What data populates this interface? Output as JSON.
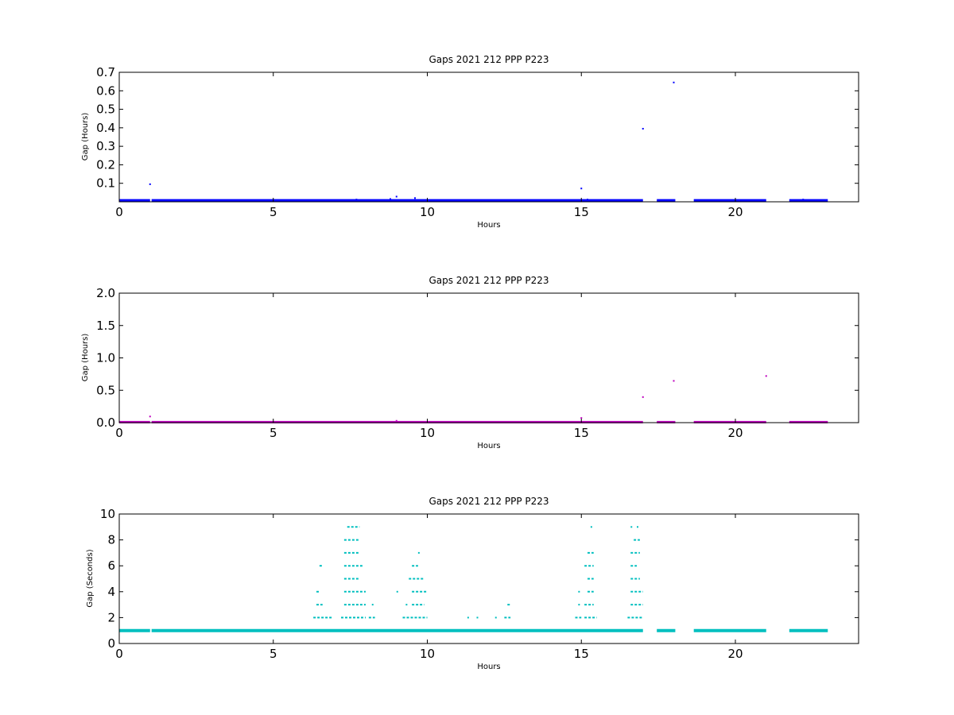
{
  "chart_data": [
    {
      "type": "scatter",
      "title": "Gaps 2021 212 PPP  P223",
      "xlabel": "Hours",
      "ylabel": "Gap (Hours)",
      "xlim": [
        0,
        24
      ],
      "ylim": [
        0,
        0.7
      ],
      "xticks": [
        0,
        5,
        10,
        15,
        20
      ],
      "xtick_labels": [
        "0",
        "5",
        "10",
        "15",
        "20"
      ],
      "yticks": [
        0.1,
        0.2,
        0.3,
        0.4,
        0.5,
        0.6,
        0.7
      ],
      "ytick_labels": [
        "0.1",
        "0.2",
        "0.3",
        "0.4",
        "0.5",
        "0.6",
        "0.7"
      ],
      "color": "#0000ff",
      "grid": false,
      "baseline": {
        "value": 0.0083,
        "segments": [
          [
            0,
            1.0
          ],
          [
            1.05,
            17.0
          ],
          [
            17.45,
            18.05
          ],
          [
            18.65,
            21.0
          ],
          [
            21.75,
            23.0
          ]
        ]
      },
      "points": [
        {
          "x": 1.0,
          "y": 0.095
        },
        {
          "x": 7.7,
          "y": 0.012
        },
        {
          "x": 8.8,
          "y": 0.015
        },
        {
          "x": 9.0,
          "y": 0.028
        },
        {
          "x": 9.6,
          "y": 0.02
        },
        {
          "x": 15.0,
          "y": 0.072
        },
        {
          "x": 15.2,
          "y": 0.012
        },
        {
          "x": 17.0,
          "y": 0.395
        },
        {
          "x": 18.0,
          "y": 0.645
        },
        {
          "x": 22.2,
          "y": 0.012
        }
      ]
    },
    {
      "type": "scatter",
      "title": "Gaps 2021 212 PPP  P223",
      "xlabel": "Hours",
      "ylabel": "Gap (Hours)",
      "xlim": [
        0,
        24
      ],
      "ylim": [
        0,
        2.0
      ],
      "xticks": [
        0,
        5,
        10,
        15,
        20
      ],
      "xtick_labels": [
        "0",
        "5",
        "10",
        "15",
        "20"
      ],
      "yticks": [
        0.0,
        0.5,
        1.0,
        1.5,
        2.0
      ],
      "ytick_labels": [
        "0.0",
        "0.5",
        "1.0",
        "1.5",
        "2.0"
      ],
      "color": "#bf00bf",
      "grid": false,
      "baseline": {
        "value": 0.0083,
        "segments": [
          [
            0,
            1.0
          ],
          [
            1.05,
            17.0
          ],
          [
            17.45,
            18.05
          ],
          [
            18.65,
            21.0
          ],
          [
            21.75,
            23.0
          ]
        ]
      },
      "points": [
        {
          "x": 1.0,
          "y": 0.095
        },
        {
          "x": 9.0,
          "y": 0.028
        },
        {
          "x": 15.0,
          "y": 0.072
        },
        {
          "x": 17.0,
          "y": 0.395
        },
        {
          "x": 18.0,
          "y": 0.645
        },
        {
          "x": 21.0,
          "y": 0.72
        }
      ]
    },
    {
      "type": "scatter",
      "title": "Gaps 2021 212 PPP  P223",
      "xlabel": "Hours",
      "ylabel": "Gap (Seconds)",
      "xlim": [
        0,
        24
      ],
      "ylim": [
        0,
        10
      ],
      "xticks": [
        0,
        5,
        10,
        15,
        20
      ],
      "xtick_labels": [
        "0",
        "5",
        "10",
        "15",
        "20"
      ],
      "yticks": [
        0,
        2,
        4,
        6,
        8,
        10
      ],
      "ytick_labels": [
        "0",
        "2",
        "4",
        "6",
        "8",
        "10"
      ],
      "color": "#00bfbf",
      "grid": false,
      "baseline": {
        "value": 1,
        "segments": [
          [
            0,
            1.0
          ],
          [
            1.05,
            17.0
          ],
          [
            17.45,
            18.05
          ],
          [
            18.65,
            21.0
          ],
          [
            21.75,
            23.0
          ]
        ]
      },
      "bars": [
        {
          "y": 2,
          "segments": [
            [
              6.3,
              6.9
            ],
            [
              7.2,
              8.0
            ],
            [
              8.1,
              8.3
            ],
            [
              9.2,
              10.0
            ],
            [
              11.3,
              11.35
            ],
            [
              11.6,
              11.65
            ],
            [
              12.2,
              12.25
            ],
            [
              12.5,
              12.7
            ],
            [
              14.8,
              15.0
            ],
            [
              15.1,
              15.5
            ],
            [
              16.5,
              17.0
            ]
          ]
        },
        {
          "y": 3,
          "segments": [
            [
              6.4,
              6.6
            ],
            [
              7.3,
              8.0
            ],
            [
              8.2,
              8.25
            ],
            [
              9.3,
              9.35
            ],
            [
              9.5,
              9.9
            ],
            [
              12.6,
              12.7
            ],
            [
              14.9,
              14.95
            ],
            [
              15.1,
              15.4
            ],
            [
              16.6,
              17.0
            ]
          ]
        },
        {
          "y": 4,
          "segments": [
            [
              6.4,
              6.5
            ],
            [
              7.3,
              8.0
            ],
            [
              9.0,
              9.05
            ],
            [
              9.5,
              10.0
            ],
            [
              14.9,
              14.95
            ],
            [
              15.2,
              15.4
            ],
            [
              16.6,
              17.0
            ]
          ]
        },
        {
          "y": 5,
          "segments": [
            [
              7.3,
              7.8
            ],
            [
              9.4,
              9.9
            ],
            [
              15.2,
              15.4
            ],
            [
              16.6,
              16.9
            ]
          ]
        },
        {
          "y": 6,
          "segments": [
            [
              6.5,
              6.6
            ],
            [
              7.3,
              7.9
            ],
            [
              9.5,
              9.7
            ],
            [
              15.1,
              15.4
            ],
            [
              16.6,
              16.8
            ]
          ]
        },
        {
          "y": 7,
          "segments": [
            [
              7.3,
              7.8
            ],
            [
              9.7,
              9.75
            ],
            [
              15.2,
              15.4
            ],
            [
              16.6,
              16.9
            ]
          ]
        },
        {
          "y": 8,
          "segments": [
            [
              7.3,
              7.8
            ],
            [
              16.7,
              16.9
            ]
          ]
        },
        {
          "y": 9,
          "segments": [
            [
              7.4,
              7.8
            ],
            [
              15.3,
              15.35
            ],
            [
              16.6,
              16.65
            ],
            [
              16.8,
              16.85
            ]
          ]
        }
      ]
    }
  ]
}
